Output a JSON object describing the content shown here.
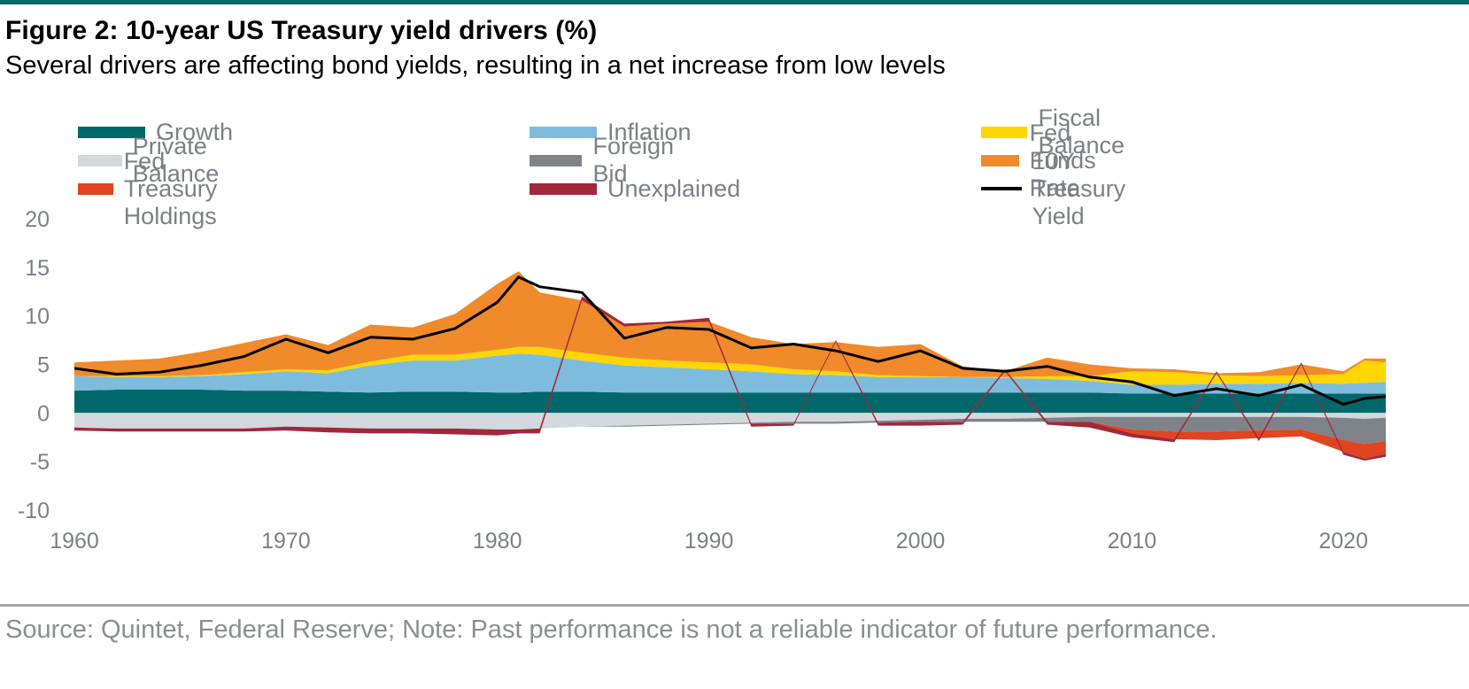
{
  "header": {
    "title": "Figure 2: 10-year US Treasury yield drivers (%)",
    "subtitle": "Several drivers are affecting bond yields, resulting in a net increase from low levels"
  },
  "footer": {
    "source": "Source: Quintet, Federal Reserve; Note: Past performance is not a reliable indicator of future performance."
  },
  "chart_data": {
    "type": "area",
    "stacked": true,
    "title": "",
    "xlabel": "",
    "ylabel": "",
    "xlim": [
      1960,
      2022
    ],
    "ylim": [
      -10,
      20
    ],
    "y_ticks": [
      20,
      15,
      10,
      5,
      0,
      -5,
      -10
    ],
    "y_tick_labels": [
      "20",
      "15",
      "10",
      "5",
      "0",
      "-5",
      "-10"
    ],
    "x_ticks": [
      1960,
      1970,
      1980,
      1990,
      2000,
      2010,
      2020
    ],
    "x_tick_labels": [
      "1960",
      "1970",
      "1980",
      "1990",
      "2000",
      "2010",
      "2020"
    ],
    "grid": false,
    "legend_position": "top",
    "x": [
      1960,
      1962,
      1964,
      1966,
      1968,
      1970,
      1972,
      1974,
      1976,
      1978,
      1980,
      1981,
      1982,
      1984,
      1986,
      1988,
      1990,
      1992,
      1994,
      1996,
      1998,
      2000,
      2002,
      2004,
      2006,
      2008,
      2010,
      2012,
      2014,
      2016,
      2018,
      2020,
      2021,
      2022
    ],
    "series": [
      {
        "name": "Growth",
        "color": "#00676a",
        "values": [
          2.3,
          2.4,
          2.4,
          2.4,
          2.3,
          2.3,
          2.2,
          2.1,
          2.2,
          2.2,
          2.1,
          2.1,
          2.2,
          2.2,
          2.1,
          2.1,
          2.1,
          2.1,
          2.1,
          2.1,
          2.1,
          2.1,
          2.1,
          2.1,
          2.1,
          2.1,
          2.0,
          2.0,
          2.0,
          2.0,
          2.0,
          2.0,
          2.0,
          2.0
        ]
      },
      {
        "name": "Inflation",
        "color": "#7dbcdc",
        "values": [
          1.5,
          1.3,
          1.3,
          1.4,
          1.7,
          2.0,
          1.9,
          2.8,
          3.2,
          3.2,
          3.8,
          4.0,
          3.8,
          3.2,
          2.8,
          2.6,
          2.4,
          2.2,
          1.9,
          1.8,
          1.6,
          1.6,
          1.6,
          1.5,
          1.4,
          1.2,
          0.9,
          0.9,
          1.0,
          1.0,
          1.1,
          1.0,
          1.1,
          1.2
        ]
      },
      {
        "name": "Fiscal Balance",
        "color": "#ffd600",
        "values": [
          0.0,
          0.1,
          0.1,
          0.1,
          0.2,
          0.2,
          0.3,
          0.4,
          0.6,
          0.6,
          0.6,
          0.7,
          0.8,
          0.8,
          0.8,
          0.7,
          0.7,
          0.7,
          0.5,
          0.4,
          0.2,
          0.1,
          0.0,
          0.1,
          0.3,
          0.5,
          1.4,
          1.3,
          0.9,
          0.8,
          0.8,
          1.0,
          2.3,
          2.0
        ]
      },
      {
        "name": "Private Balance",
        "color": "#d3d8de",
        "values": [
          -1.5,
          -1.6,
          -1.6,
          -1.6,
          -1.6,
          -1.4,
          -1.5,
          -1.6,
          -1.6,
          -1.6,
          -1.7,
          -1.7,
          -1.6,
          -1.4,
          -1.3,
          -1.2,
          -1.1,
          -1.0,
          -0.9,
          -0.9,
          -0.8,
          -0.7,
          -0.6,
          -0.6,
          -0.5,
          -0.4,
          -0.4,
          -0.4,
          -0.4,
          -0.4,
          -0.4,
          -0.5,
          -0.6,
          -0.5
        ]
      },
      {
        "name": "Foreign Bid",
        "color": "#7f8389",
        "values": [
          0.0,
          0.0,
          0.0,
          0.0,
          0.0,
          0.0,
          0.0,
          0.0,
          0.0,
          0.0,
          0.0,
          0.0,
          0.0,
          0.0,
          -0.1,
          -0.1,
          -0.1,
          -0.1,
          -0.2,
          -0.2,
          -0.2,
          -0.2,
          -0.3,
          -0.3,
          -0.4,
          -0.5,
          -1.3,
          -1.5,
          -1.5,
          -1.4,
          -1.3,
          -2.3,
          -2.6,
          -2.4
        ]
      },
      {
        "name": "Fed Funds Rate",
        "color": "#f08a2b",
        "values": [
          1.4,
          1.6,
          1.8,
          2.4,
          3.0,
          3.6,
          2.6,
          3.8,
          2.8,
          4.2,
          6.8,
          7.8,
          5.6,
          5.4,
          3.2,
          3.8,
          4.2,
          2.8,
          2.6,
          3.0,
          2.9,
          3.3,
          1.1,
          0.6,
          1.9,
          1.2,
          0.3,
          0.3,
          0.2,
          0.4,
          1.1,
          0.3,
          0.2,
          0.4
        ]
      },
      {
        "name": "Fed Treasury Holdings",
        "color": "#e04420",
        "values": [
          0.0,
          0.0,
          0.0,
          0.0,
          0.0,
          0.0,
          0.0,
          0.0,
          0.0,
          0.0,
          0.0,
          0.0,
          0.0,
          0.0,
          0.0,
          0.0,
          0.0,
          0.0,
          0.0,
          0.0,
          0.0,
          0.0,
          0.0,
          0.0,
          0.0,
          0.0,
          -0.4,
          -0.8,
          -0.9,
          -0.8,
          -0.7,
          -1.2,
          -1.5,
          -1.3
        ]
      },
      {
        "name": "Unexplained",
        "color": "#a0283a",
        "values": [
          -0.3,
          -0.3,
          -0.3,
          -0.3,
          -0.3,
          -0.4,
          -0.5,
          -0.5,
          -0.5,
          -0.6,
          -0.6,
          -0.4,
          -0.5,
          0.4,
          0.3,
          0.2,
          0.4,
          -0.3,
          -0.2,
          0.2,
          -0.3,
          -0.4,
          -0.3,
          0.2,
          -0.3,
          -0.6,
          -0.4,
          -0.3,
          0.2,
          -0.3,
          0.2,
          -0.3,
          -0.2,
          -0.3
        ]
      },
      {
        "name": "10Y Treasury Yield",
        "color": "#000000",
        "type": "line",
        "values": [
          4.6,
          4.0,
          4.2,
          4.9,
          5.8,
          7.6,
          6.2,
          7.8,
          7.6,
          8.7,
          11.4,
          14.0,
          13.0,
          12.4,
          7.7,
          8.8,
          8.6,
          6.7,
          7.1,
          6.4,
          5.3,
          6.4,
          4.6,
          4.3,
          4.8,
          3.7,
          3.2,
          1.8,
          2.5,
          1.8,
          2.9,
          0.9,
          1.5,
          1.7
        ]
      }
    ]
  }
}
